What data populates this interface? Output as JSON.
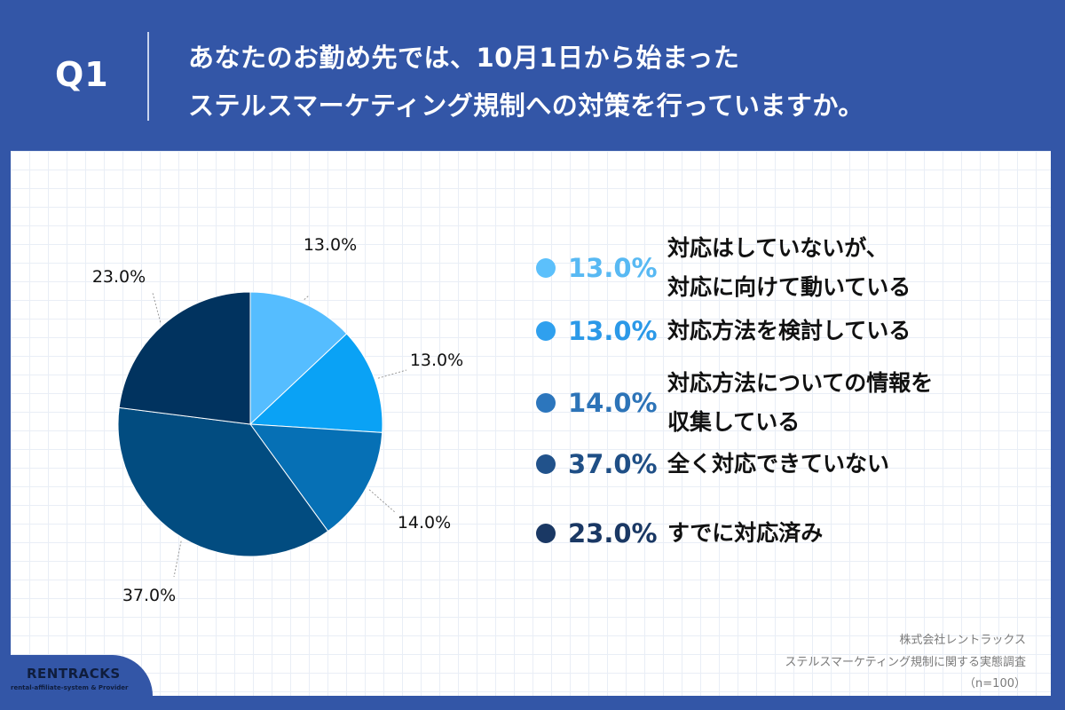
{
  "header": {
    "q_label": "Q1",
    "title_line1": "あなたのお勤め先では、10月1日から始まった",
    "title_line2": "ステルスマーケティング規制への対策を行っていますか。"
  },
  "chart_data": {
    "type": "pie",
    "title": "",
    "slices": [
      {
        "label": "対応はしていないが、対応に向けて動いている",
        "label_lines": [
          "対応はしていないが、",
          "対応に向けて動いている"
        ],
        "value": 13.0,
        "display": "13.0%",
        "color": "#55bdff"
      },
      {
        "label": "対応方法を検討している",
        "label_lines": [
          "対応方法を検討している"
        ],
        "value": 13.0,
        "display": "13.0%",
        "color": "#0aa2f5"
      },
      {
        "label": "対応方法についての情報を収集している",
        "label_lines": [
          "対応方法についての情報を",
          "収集している"
        ],
        "value": 14.0,
        "display": "14.0%",
        "color": "#0670b5"
      },
      {
        "label": "全く対応できていない",
        "label_lines": [
          "全く対応できていない"
        ],
        "value": 37.0,
        "display": "37.0%",
        "color": "#024c80"
      },
      {
        "label": "すでに対応済み",
        "label_lines": [
          "すでに対応済み"
        ],
        "value": 23.0,
        "display": "23.0%",
        "color": "#01335f"
      }
    ],
    "legend_placement": "right"
  },
  "legend_colors": {
    "dots": [
      "#5cc0fb",
      "#2fa0ee",
      "#2c76bd",
      "#21528b",
      "#1a3864"
    ],
    "text": [
      "#58b9f3",
      "#2b99e8",
      "#2d74b8",
      "#1f4f86",
      "#1a3864"
    ]
  },
  "footer": {
    "company": "株式会社レントラックス",
    "survey": "ステルスマーケティング規制に関する実態調査",
    "sample": "（n=100）"
  },
  "logo": {
    "name": "RENTRACKS",
    "tagline": "rental-affiliate-system & Provider"
  }
}
